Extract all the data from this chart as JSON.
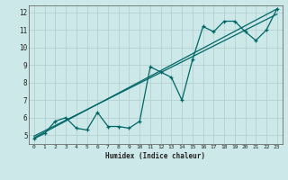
{
  "xlabel": "Humidex (Indice chaleur)",
  "ylabel": "",
  "bg_color": "#cce8e8",
  "grid_color": "#b0cccc",
  "line_color": "#006666",
  "xlim": [
    -0.5,
    23.5
  ],
  "ylim": [
    4.5,
    12.4
  ],
  "xticks": [
    0,
    1,
    2,
    3,
    4,
    5,
    6,
    7,
    8,
    9,
    10,
    11,
    12,
    13,
    14,
    15,
    16,
    17,
    18,
    19,
    20,
    21,
    22,
    23
  ],
  "yticks": [
    5,
    6,
    7,
    8,
    9,
    10,
    11,
    12
  ],
  "data_x": [
    0,
    1,
    2,
    3,
    4,
    5,
    6,
    7,
    8,
    9,
    10,
    11,
    12,
    13,
    14,
    15,
    16,
    17,
    18,
    19,
    20,
    21,
    22,
    23
  ],
  "data_y": [
    4.8,
    5.1,
    5.8,
    6.0,
    5.4,
    5.3,
    6.3,
    5.5,
    5.5,
    5.4,
    5.8,
    8.9,
    8.6,
    8.3,
    7.0,
    9.3,
    11.2,
    10.9,
    11.5,
    11.5,
    10.9,
    10.4,
    11.0,
    12.2
  ],
  "trend1_x": [
    0,
    23
  ],
  "trend1_y": [
    4.85,
    12.2
  ],
  "trend2_x": [
    0,
    23
  ],
  "trend2_y": [
    4.95,
    11.9
  ]
}
